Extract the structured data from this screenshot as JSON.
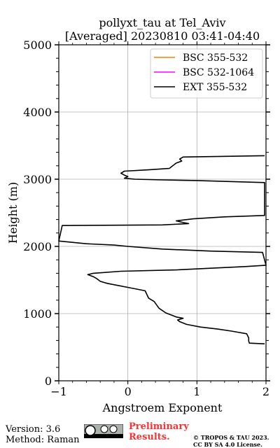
{
  "chart_data": {
    "type": "line",
    "title_line1": "pollyxt_tau at Tel_Aviv",
    "title_line2": "[Averaged] 20230810 03:41-04:40",
    "xlabel": "Angstroem Exponent",
    "ylabel": "Height (m)",
    "xlim": [
      -1,
      2
    ],
    "ylim": [
      0,
      5000
    ],
    "x_ticks": [
      "−1",
      "0",
      "1",
      "2"
    ],
    "y_ticks": [
      "0",
      "1000",
      "2000",
      "3000",
      "4000",
      "5000"
    ],
    "grid": true,
    "legend_position": "upper right",
    "series": [
      {
        "name": "BSC 355-532",
        "color": "#ff7f0e",
        "points": []
      },
      {
        "name": "BSC 532-1064",
        "color": "#ff00ff",
        "points": []
      },
      {
        "name": "EXT 355-532",
        "color": "#000000",
        "points": [
          [
            1.98,
            550
          ],
          [
            1.76,
            560
          ],
          [
            1.75,
            590
          ],
          [
            1.75,
            640
          ],
          [
            1.72,
            700
          ],
          [
            1.5,
            740
          ],
          [
            1.3,
            770
          ],
          [
            1.05,
            800
          ],
          [
            0.85,
            840
          ],
          [
            0.75,
            880
          ],
          [
            0.72,
            905
          ],
          [
            0.8,
            930
          ],
          [
            0.7,
            950
          ],
          [
            0.55,
            1010
          ],
          [
            0.45,
            1080
          ],
          [
            0.38,
            1180
          ],
          [
            0.3,
            1230
          ],
          [
            0.25,
            1340
          ],
          [
            0.05,
            1380
          ],
          [
            -0.15,
            1420
          ],
          [
            -0.3,
            1450
          ],
          [
            -0.4,
            1480
          ],
          [
            -0.45,
            1520
          ],
          [
            -0.5,
            1550
          ],
          [
            -0.58,
            1580
          ],
          [
            -0.5,
            1600
          ],
          [
            -0.1,
            1630
          ],
          [
            0.7,
            1650
          ],
          [
            1.3,
            1680
          ],
          [
            1.7,
            1700
          ],
          [
            2.0,
            1720
          ],
          [
            1.95,
            1910
          ],
          [
            1.2,
            1930
          ],
          [
            0.5,
            1960
          ],
          [
            0.0,
            2000
          ],
          [
            -0.2,
            2020
          ],
          [
            -0.6,
            2040
          ],
          [
            -1.0,
            2080
          ],
          [
            -0.95,
            2310
          ],
          [
            0.5,
            2320
          ],
          [
            0.88,
            2340
          ],
          [
            0.78,
            2360
          ],
          [
            0.7,
            2380
          ],
          [
            0.95,
            2410
          ],
          [
            1.4,
            2440
          ],
          [
            1.98,
            2460
          ],
          [
            1.98,
            2950
          ],
          [
            1.0,
            2980
          ],
          [
            0.5,
            2990
          ],
          [
            0.1,
            3000
          ],
          [
            -0.05,
            3015
          ],
          [
            0.0,
            3040
          ],
          [
            -0.05,
            3060
          ],
          [
            -0.1,
            3090
          ],
          [
            -0.05,
            3120
          ],
          [
            0.3,
            3140
          ],
          [
            0.6,
            3160
          ],
          [
            0.65,
            3200
          ],
          [
            0.7,
            3240
          ],
          [
            0.78,
            3270
          ],
          [
            0.75,
            3300
          ],
          [
            0.8,
            3330
          ],
          [
            1.98,
            3350
          ]
        ]
      }
    ]
  },
  "footer": {
    "version": "Version: 3.6",
    "method": "Method: Raman",
    "prelim_line1": "Preliminary",
    "prelim_line2": "Results.",
    "copyright_line1": "© TROPOS & TAU 2023.",
    "copyright_line2": "CC BY SA 4.0 License."
  }
}
